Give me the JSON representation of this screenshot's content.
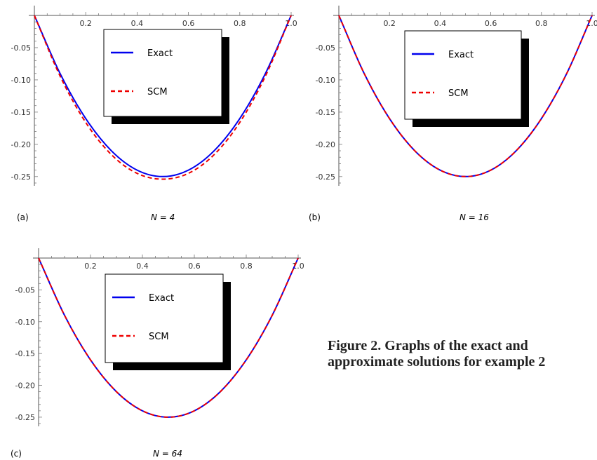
{
  "figure": {
    "caption": "Figure 2. Graphs of the exact and approximate solutions for example 2"
  },
  "chart_data": [
    {
      "type": "line",
      "panel_label": "(a)",
      "n_label": "N = 4",
      "xlim": [
        0,
        1
      ],
      "ylim": [
        -0.26,
        0
      ],
      "x_ticks": [
        "0.2",
        "0.4",
        "0.6",
        "0.8",
        "1.0"
      ],
      "y_ticks": [
        "-0.05",
        "-0.10",
        "-0.15",
        "-0.20",
        "-0.25"
      ],
      "legend": {
        "placement": "top-center",
        "entries": [
          "Exact",
          "SCM"
        ]
      },
      "series": [
        {
          "name": "Exact",
          "color": "#0000ee",
          "style": "solid",
          "x": [
            0,
            0.1,
            0.2,
            0.3,
            0.4,
            0.5,
            0.6,
            0.7,
            0.8,
            0.9,
            1.0
          ],
          "y": [
            0,
            -0.09,
            -0.16,
            -0.21,
            -0.24,
            -0.25,
            -0.24,
            -0.21,
            -0.16,
            -0.09,
            0
          ]
        },
        {
          "name": "SCM",
          "color": "#ee0000",
          "style": "dashed",
          "x": [
            0,
            0.1,
            0.2,
            0.3,
            0.4,
            0.5,
            0.6,
            0.7,
            0.8,
            0.9,
            1.0
          ],
          "y": [
            0,
            -0.094,
            -0.166,
            -0.216,
            -0.245,
            -0.254,
            -0.245,
            -0.216,
            -0.166,
            -0.094,
            0
          ]
        }
      ]
    },
    {
      "type": "line",
      "panel_label": "(b)",
      "n_label": "N = 16",
      "xlim": [
        0,
        1
      ],
      "ylim": [
        -0.26,
        0
      ],
      "x_ticks": [
        "0.2",
        "0.4",
        "0.6",
        "0.8",
        "1.0"
      ],
      "y_ticks": [
        "-0.05",
        "-0.10",
        "-0.15",
        "-0.20",
        "-0.25"
      ],
      "legend": {
        "placement": "top-center",
        "entries": [
          "Exact",
          "SCM"
        ]
      },
      "series": [
        {
          "name": "Exact",
          "color": "#0000ee",
          "style": "solid",
          "x": [
            0,
            0.1,
            0.2,
            0.3,
            0.4,
            0.5,
            0.6,
            0.7,
            0.8,
            0.9,
            1.0
          ],
          "y": [
            0,
            -0.09,
            -0.16,
            -0.21,
            -0.24,
            -0.25,
            -0.24,
            -0.21,
            -0.16,
            -0.09,
            0
          ]
        },
        {
          "name": "SCM",
          "color": "#ee0000",
          "style": "dashed",
          "x": [
            0,
            0.1,
            0.2,
            0.3,
            0.4,
            0.5,
            0.6,
            0.7,
            0.8,
            0.9,
            1.0
          ],
          "y": [
            0,
            -0.09,
            -0.16,
            -0.21,
            -0.24,
            -0.25,
            -0.24,
            -0.21,
            -0.16,
            -0.09,
            0
          ]
        }
      ]
    },
    {
      "type": "line",
      "panel_label": "(c)",
      "n_label": "N = 64",
      "xlim": [
        0,
        1
      ],
      "ylim": [
        -0.26,
        0
      ],
      "x_ticks": [
        "0.2",
        "0.4",
        "0.6",
        "0.8",
        "1.0"
      ],
      "y_ticks": [
        "-0.05",
        "-0.10",
        "-0.15",
        "-0.20",
        "-0.25"
      ],
      "legend": {
        "placement": "top-center",
        "entries": [
          "Exact",
          "SCM"
        ]
      },
      "series": [
        {
          "name": "Exact",
          "color": "#0000ee",
          "style": "solid",
          "x": [
            0,
            0.1,
            0.2,
            0.3,
            0.4,
            0.5,
            0.6,
            0.7,
            0.8,
            0.9,
            1.0
          ],
          "y": [
            0,
            -0.09,
            -0.16,
            -0.21,
            -0.24,
            -0.25,
            -0.24,
            -0.21,
            -0.16,
            -0.09,
            0
          ]
        },
        {
          "name": "SCM",
          "color": "#ee0000",
          "style": "dashed",
          "x": [
            0,
            0.1,
            0.2,
            0.3,
            0.4,
            0.5,
            0.6,
            0.7,
            0.8,
            0.9,
            1.0
          ],
          "y": [
            0,
            -0.09,
            -0.16,
            -0.21,
            -0.24,
            -0.25,
            -0.24,
            -0.21,
            -0.16,
            -0.09,
            0
          ]
        }
      ]
    }
  ]
}
